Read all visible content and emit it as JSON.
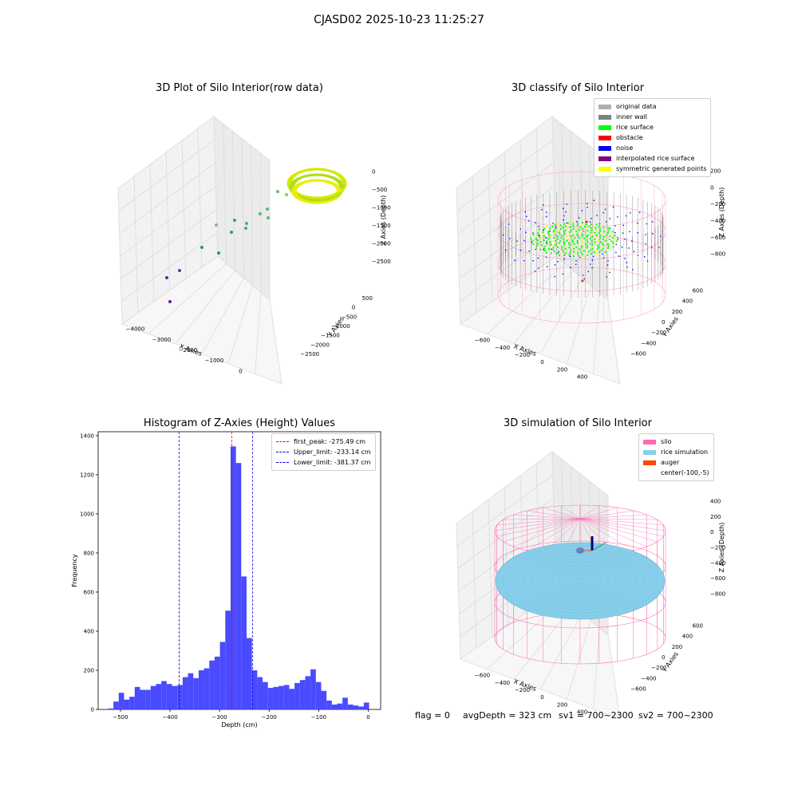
{
  "suptitle": "CJASD02 2025-10-23 11:25:27",
  "colors": {
    "histogram_bar": "#4a4aff",
    "first_peak": "#ff0000",
    "limits": "#0000ff",
    "silo": "#ff69b4",
    "rice": "#87ceeb",
    "auger": "#ff4500"
  },
  "panels": {
    "raw": {
      "title": "3D Plot of Silo Interior(row data)"
    },
    "classify": {
      "title": "3D classify of Silo Interior"
    },
    "histogram": {
      "title": "Histogram of Z-Axies (Height) Values"
    },
    "simulation": {
      "title": "3D simulation of Silo Interior"
    }
  },
  "footer": {
    "flag": "flag = 0",
    "avg_depth": "avgDepth = 323 cm",
    "sv1": "sv1 = 700~2300",
    "sv2": "sv2 = 700~2300"
  },
  "chart_data": [
    {
      "type": "scatter",
      "title": "3D Plot of Silo Interior(row data)",
      "xlabel": "X Axies",
      "ylabel": "Y Axies",
      "zlabel": "Z Axies (Depth)",
      "x_ticks": [
        "−4000",
        "−3000",
        "−2000",
        "−1000",
        "0"
      ],
      "y_ticks": [
        "500",
        "0",
        "−500",
        "−1000",
        "−1500",
        "−2000",
        "−2500"
      ],
      "z_ticks": [
        "0",
        "−500",
        "−1000",
        "−1500",
        "−2000",
        "−2500"
      ]
    },
    {
      "type": "scatter",
      "title": "3D classify of Silo Interior",
      "xlabel": "X Axies",
      "ylabel": "Y Axies",
      "zlabel": "Z Axies (Depth)",
      "x_ticks": [
        "−600",
        "−400",
        "−200",
        "0",
        "200",
        "400"
      ],
      "y_ticks": [
        "600",
        "400",
        "200",
        "0",
        "−200",
        "−400",
        "−600"
      ],
      "z_ticks": [
        "200",
        "0",
        "−200",
        "−400",
        "−600",
        "−800"
      ],
      "legend": [
        {
          "label": "original data",
          "color": "#b0b0b0"
        },
        {
          "label": "inner wall",
          "color": "#808080"
        },
        {
          "label": "rice surface",
          "color": "#00ff00"
        },
        {
          "label": "obstacle",
          "color": "#ff0000"
        },
        {
          "label": "noise",
          "color": "#0000ff"
        },
        {
          "label": "interpolated rice surface",
          "color": "#800080"
        },
        {
          "label": "symmetric generated points",
          "color": "#ffff00"
        }
      ]
    },
    {
      "type": "bar",
      "title": "Histogram of Z-Axies (Height) Values",
      "xlabel": "Depth (cm)",
      "ylabel": "Frequency",
      "xlim": [
        -545,
        25
      ],
      "ylim": [
        0,
        1420
      ],
      "x_ticks": [
        -500,
        -400,
        -300,
        -200,
        -100,
        0
      ],
      "x_tick_labels": [
        "−500",
        "−400",
        "−300",
        "−200",
        "−100",
        "0"
      ],
      "y_ticks": [
        0,
        200,
        400,
        600,
        800,
        1000,
        1200,
        1400
      ],
      "bin_start": -525,
      "bin_width": 10.75,
      "values": [
        5,
        40,
        85,
        50,
        65,
        115,
        100,
        100,
        120,
        130,
        145,
        130,
        120,
        125,
        165,
        185,
        160,
        200,
        210,
        250,
        270,
        345,
        505,
        1345,
        1260,
        680,
        365,
        200,
        165,
        140,
        110,
        115,
        120,
        125,
        105,
        135,
        150,
        170,
        205,
        140,
        95,
        45,
        25,
        30,
        60,
        25,
        20,
        15,
        35
      ],
      "lines": [
        {
          "label": "first_peak: -275.49 cm",
          "x": -275.49,
          "color": "#ff0000"
        },
        {
          "label": "Upper_limit: -233.14 cm",
          "x": -233.14,
          "color": "#0000ff"
        },
        {
          "label": "Lower_limit: -381.37 cm",
          "x": -381.37,
          "color": "#0000ff"
        }
      ]
    },
    {
      "type": "scatter",
      "title": "3D simulation of Silo Interior",
      "xlabel": "X Axies",
      "ylabel": "Y Axies",
      "zlabel": "Z Axies (Depth)",
      "x_ticks": [
        "−600",
        "−400",
        "−200",
        "0",
        "200",
        "400"
      ],
      "y_ticks": [
        "600",
        "400",
        "200",
        "0",
        "−200",
        "−400",
        "−600"
      ],
      "z_ticks": [
        "400",
        "200",
        "0",
        "−200",
        "−400",
        "−600",
        "−800"
      ],
      "legend": [
        {
          "label": "silo",
          "color": "#ff69b4"
        },
        {
          "label": "rice simulation",
          "color": "#87ceeb"
        },
        {
          "label": "auger",
          "color": "#ff4500"
        },
        {
          "label": "center(-100,-5)",
          "color": ""
        }
      ]
    }
  ]
}
